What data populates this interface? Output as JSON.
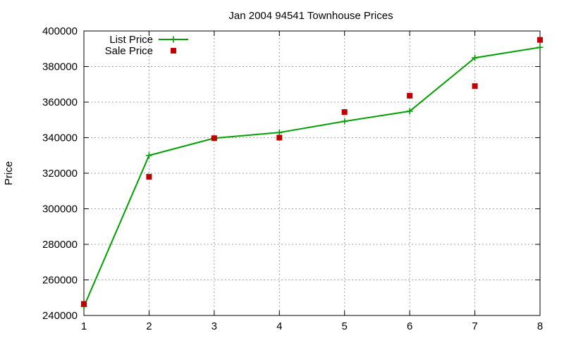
{
  "chart_data": {
    "type": "line",
    "title": "Jan 2004 94541 Townhouse Prices",
    "xlabel": "",
    "ylabel": "Price",
    "x": [
      1,
      2,
      3,
      4,
      5,
      6,
      7,
      8
    ],
    "xlim": [
      1,
      8
    ],
    "ylim": [
      240000,
      400000
    ],
    "xticks": [
      1,
      2,
      3,
      4,
      5,
      6,
      7,
      8
    ],
    "yticks": [
      240000,
      260000,
      280000,
      300000,
      320000,
      340000,
      360000,
      380000,
      400000
    ],
    "grid": true,
    "legend_position": "top-left",
    "series": [
      {
        "name": "List Price",
        "style": "line-with-plus-markers",
        "color": "#00a000",
        "values": [
          245000,
          330000,
          339700,
          342900,
          349200,
          354900,
          384900,
          390800
        ]
      },
      {
        "name": "Sale Price",
        "style": "square-markers",
        "color": "#c00000",
        "values": [
          246500,
          318000,
          339700,
          340000,
          354400,
          363600,
          369000,
          395000
        ]
      }
    ]
  }
}
